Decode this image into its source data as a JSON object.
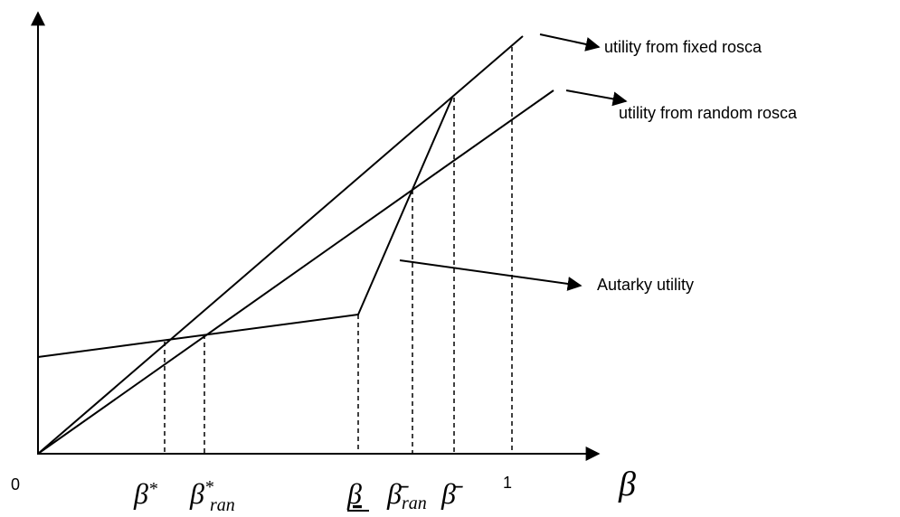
{
  "curves": {
    "fixed": "utility from fixed rosca",
    "random": "utility from random rosca",
    "autarky": "Autarky utility"
  },
  "axis": {
    "origin": "0",
    "one": "1",
    "x_label": "β"
  },
  "thresholds": [
    {
      "base": "β",
      "sup": "*"
    },
    {
      "base": "β",
      "sup": "*",
      "sub": "ran"
    },
    {
      "base": "β"
    },
    {
      "base": "β̄",
      "sub": "ran"
    },
    {
      "base": "β̄"
    }
  ]
}
